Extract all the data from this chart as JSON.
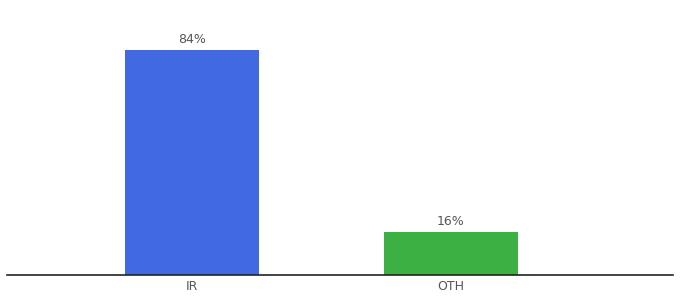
{
  "categories": [
    "IR",
    "OTH"
  ],
  "values": [
    84,
    16
  ],
  "bar_colors": [
    "#4169E1",
    "#3CB043"
  ],
  "labels": [
    "84%",
    "16%"
  ],
  "background_color": "#ffffff",
  "text_color": "#555555",
  "label_fontsize": 9,
  "tick_fontsize": 9,
  "ylim": [
    0,
    100
  ],
  "bar_width": 0.18,
  "x_positions": [
    0.3,
    0.65
  ],
  "xlim": [
    0.05,
    0.95
  ]
}
